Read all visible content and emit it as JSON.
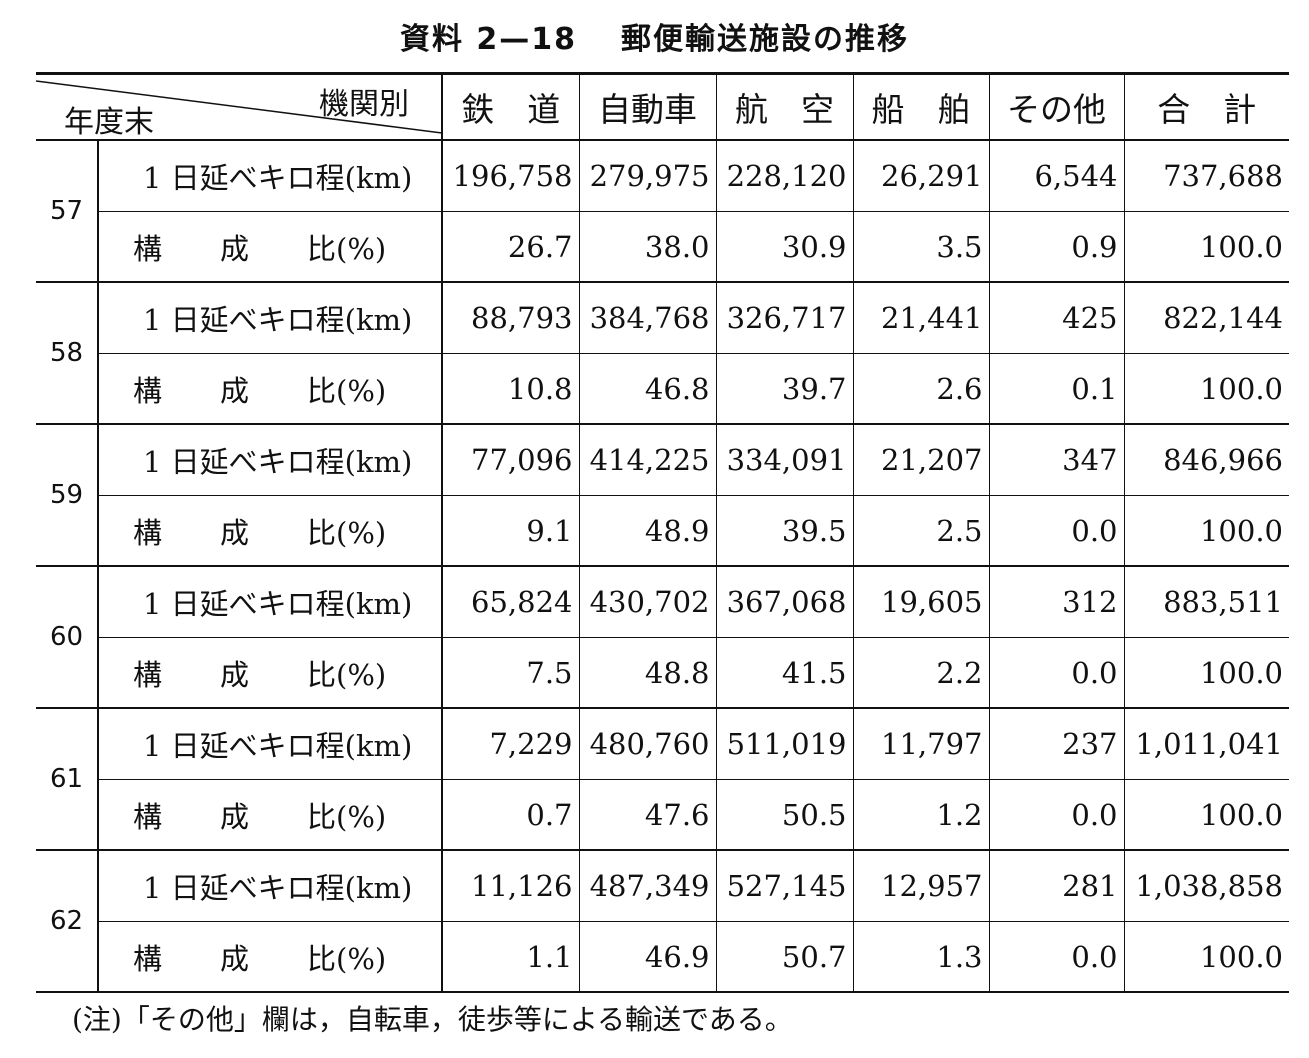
{
  "title": {
    "label": "資料 2—18",
    "text": "郵便輸送施設の推移"
  },
  "header": {
    "corner_top": "機関別",
    "corner_bottom": "年度末",
    "columns": [
      "鉄　道",
      "自動車",
      "航　空",
      "船　舶",
      "その他",
      "合　計"
    ]
  },
  "row_labels": {
    "km": "1 日延べキロ程(km)",
    "pct": "構　　成　　比(%)"
  },
  "rows": [
    {
      "year": "57",
      "km": [
        "196,758",
        "279,975",
        "228,120",
        "26,291",
        "6,544",
        "737,688"
      ],
      "pct": [
        "26.7",
        "38.0",
        "30.9",
        "3.5",
        "0.9",
        "100.0"
      ]
    },
    {
      "year": "58",
      "km": [
        "88,793",
        "384,768",
        "326,717",
        "21,441",
        "425",
        "822,144"
      ],
      "pct": [
        "10.8",
        "46.8",
        "39.7",
        "2.6",
        "0.1",
        "100.0"
      ]
    },
    {
      "year": "59",
      "km": [
        "77,096",
        "414,225",
        "334,091",
        "21,207",
        "347",
        "846,966"
      ],
      "pct": [
        "9.1",
        "48.9",
        "39.5",
        "2.5",
        "0.0",
        "100.0"
      ]
    },
    {
      "year": "60",
      "km": [
        "65,824",
        "430,702",
        "367,068",
        "19,605",
        "312",
        "883,511"
      ],
      "pct": [
        "7.5",
        "48.8",
        "41.5",
        "2.2",
        "0.0",
        "100.0"
      ]
    },
    {
      "year": "61",
      "km": [
        "7,229",
        "480,760",
        "511,019",
        "11,797",
        "237",
        "1,011,041"
      ],
      "pct": [
        "0.7",
        "47.6",
        "50.5",
        "1.2",
        "0.0",
        "100.0"
      ]
    },
    {
      "year": "62",
      "km": [
        "11,126",
        "487,349",
        "527,145",
        "12,957",
        "281",
        "1,038,858"
      ],
      "pct": [
        "1.1",
        "46.9",
        "50.7",
        "1.3",
        "0.0",
        "100.0"
      ]
    }
  ],
  "note": "(注)「その他」欄は，自転車，徒歩等による輸送である。"
}
